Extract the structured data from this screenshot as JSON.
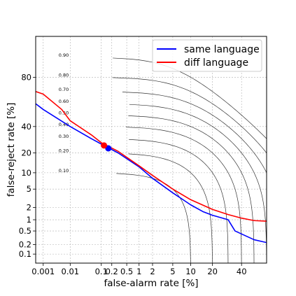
{
  "chart_data": {
    "type": "line",
    "xlabel": "false-alarm rate [%]",
    "ylabel": "false-reject rate [%]",
    "axis_scale": "normal-deviate (probit) on both axes",
    "xlim": [
      0.0005,
      60
    ],
    "ylim": [
      0.05,
      96
    ],
    "grid": true,
    "legend_position": "top-right",
    "x_ticks": [
      {
        "v": 0.001,
        "label": "0.001"
      },
      {
        "v": 0.01,
        "label": "0.01"
      },
      {
        "v": 0.1,
        "label": "0.1"
      },
      {
        "v": 0.2,
        "label": "0.2"
      },
      {
        "v": 0.5,
        "label": "0.5"
      },
      {
        "v": 1,
        "label": "1"
      },
      {
        "v": 2,
        "label": "2"
      },
      {
        "v": 5,
        "label": "5"
      },
      {
        "v": 10,
        "label": "10"
      },
      {
        "v": 20,
        "label": "20"
      },
      {
        "v": 40,
        "label": "40"
      }
    ],
    "y_ticks": [
      {
        "v": 0.1,
        "label": "0.1"
      },
      {
        "v": 0.2,
        "label": "0.2"
      },
      {
        "v": 0.5,
        "label": "0.5"
      },
      {
        "v": 1,
        "label": "1"
      },
      {
        "v": 2,
        "label": "2"
      },
      {
        "v": 5,
        "label": "5"
      },
      {
        "v": 10,
        "label": "10"
      },
      {
        "v": 20,
        "label": "20"
      },
      {
        "v": 40,
        "label": "40"
      },
      {
        "v": 80,
        "label": "80"
      }
    ],
    "contours": {
      "levels": [
        0.1,
        0.2,
        0.3,
        0.4,
        0.5,
        0.6,
        0.7,
        0.8,
        0.9
      ],
      "labels": [
        "0.10",
        "0.20",
        "0.30",
        "0.40",
        "0.50",
        "0.60",
        "0.70",
        "0.80",
        "0.90"
      ],
      "color": "#333333"
    },
    "series": [
      {
        "name": "same language",
        "color": "#0000ff",
        "points": [
          [
            0.0005,
            60
          ],
          [
            0.001,
            55
          ],
          [
            0.01,
            40
          ],
          [
            0.05,
            30
          ],
          [
            0.1,
            26
          ],
          [
            0.3,
            20
          ],
          [
            1,
            12.5
          ],
          [
            2,
            8
          ],
          [
            5,
            4.2
          ],
          [
            10,
            2.3
          ],
          [
            15,
            1.6
          ],
          [
            20,
            1.3
          ],
          [
            30,
            1.0
          ],
          [
            35,
            0.5
          ],
          [
            50,
            0.28
          ],
          [
            60,
            0.23
          ]
        ],
        "marker": {
          "x": 0.16,
          "y": 23
        }
      },
      {
        "name": "diff language",
        "color": "#ff0000",
        "points": [
          [
            0.0005,
            70
          ],
          [
            0.001,
            68
          ],
          [
            0.005,
            55
          ],
          [
            0.01,
            45
          ],
          [
            0.05,
            33
          ],
          [
            0.1,
            27
          ],
          [
            0.3,
            21
          ],
          [
            1,
            13
          ],
          [
            2,
            9
          ],
          [
            5,
            5
          ],
          [
            10,
            3
          ],
          [
            20,
            1.8
          ],
          [
            30,
            1.35
          ],
          [
            40,
            1.1
          ],
          [
            50,
            0.95
          ],
          [
            60,
            0.92
          ]
        ],
        "marker": {
          "x": 0.12,
          "y": 25
        }
      }
    ]
  }
}
